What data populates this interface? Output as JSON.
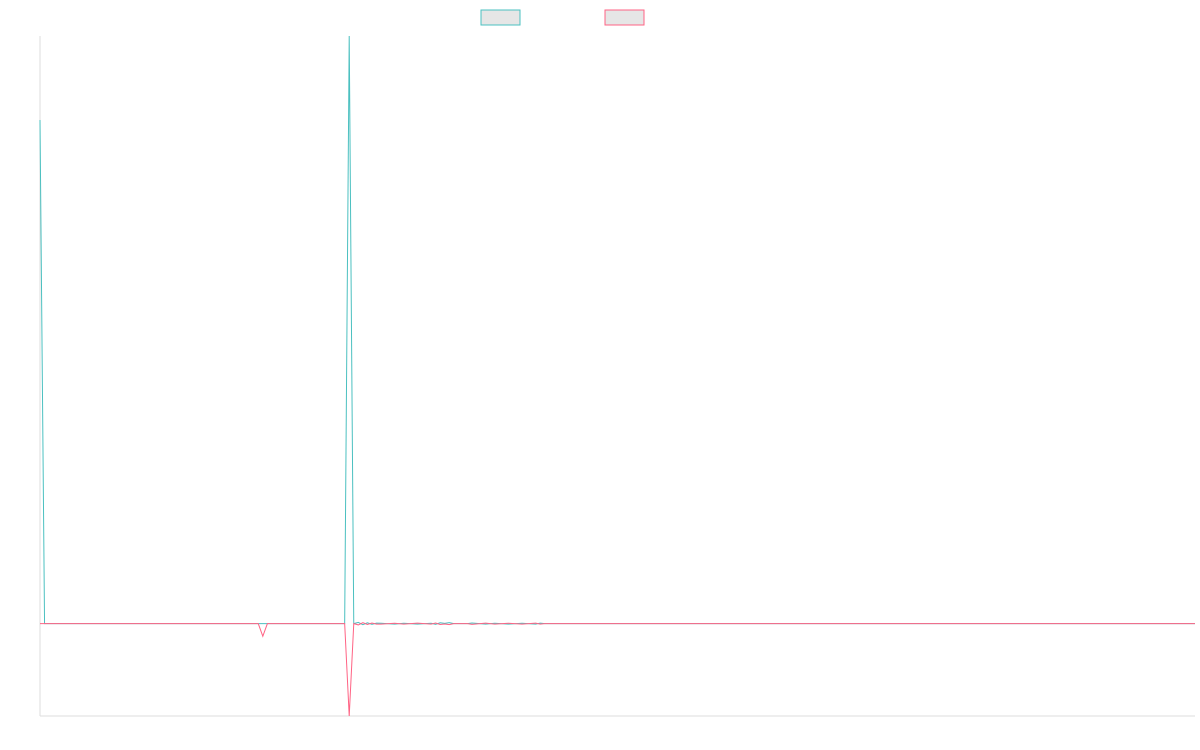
{
  "chart_data": {
    "type": "line",
    "title": "",
    "xlabel": "",
    "ylabel": "",
    "grid": false,
    "legend_placement": "top-center",
    "x_count": 255,
    "ylim": [
      -11,
      70
    ],
    "series": [
      {
        "color": "#4bc0c0",
        "legend_fill": "#e6e6e6",
        "points": [
          [
            0,
            60
          ],
          [
            1,
            0
          ],
          [
            2,
            0
          ],
          [
            67,
            0
          ],
          [
            68,
            70
          ],
          [
            69,
            0
          ],
          [
            70,
            0.15
          ],
          [
            71,
            -0.12
          ],
          [
            72,
            0.1
          ],
          [
            73,
            -0.08
          ],
          [
            74,
            0.06
          ],
          [
            75,
            0.05
          ],
          [
            78,
            -0.05
          ],
          [
            80,
            0.05
          ],
          [
            83,
            -0.06
          ],
          [
            86,
            0.05
          ],
          [
            87,
            -0.08
          ],
          [
            88,
            0.1
          ],
          [
            89,
            0.04
          ],
          [
            90,
            0.12
          ],
          [
            91,
            0
          ],
          [
            94,
            0
          ],
          [
            95,
            0.08
          ],
          [
            98,
            -0.06
          ],
          [
            100,
            0.05
          ],
          [
            103,
            -0.05
          ],
          [
            106,
            0.05
          ],
          [
            109,
            -0.06
          ],
          [
            110,
            0.06
          ],
          [
            111,
            0
          ],
          [
            254,
            0
          ]
        ]
      },
      {
        "color": "#ff6384",
        "legend_fill": "#e6e6e6",
        "points": [
          [
            0,
            0
          ],
          [
            48,
            0
          ],
          [
            49,
            -1.5
          ],
          [
            50,
            0
          ],
          [
            67,
            0
          ],
          [
            68,
            -11
          ],
          [
            69,
            0
          ],
          [
            70,
            -0.15
          ],
          [
            71,
            0.12
          ],
          [
            72,
            -0.1
          ],
          [
            73,
            0.08
          ],
          [
            74,
            -0.06
          ],
          [
            75,
            -0.05
          ],
          [
            78,
            0.05
          ],
          [
            80,
            -0.05
          ],
          [
            83,
            0.06
          ],
          [
            86,
            -0.05
          ],
          [
            87,
            0.08
          ],
          [
            88,
            -0.1
          ],
          [
            89,
            -0.04
          ],
          [
            90,
            -0.12
          ],
          [
            91,
            0
          ],
          [
            94,
            0
          ],
          [
            95,
            -0.08
          ],
          [
            98,
            0.06
          ],
          [
            100,
            -0.05
          ],
          [
            103,
            0.05
          ],
          [
            106,
            -0.05
          ],
          [
            109,
            0.06
          ],
          [
            110,
            -0.06
          ],
          [
            111,
            0
          ],
          [
            254,
            0
          ]
        ]
      }
    ]
  }
}
